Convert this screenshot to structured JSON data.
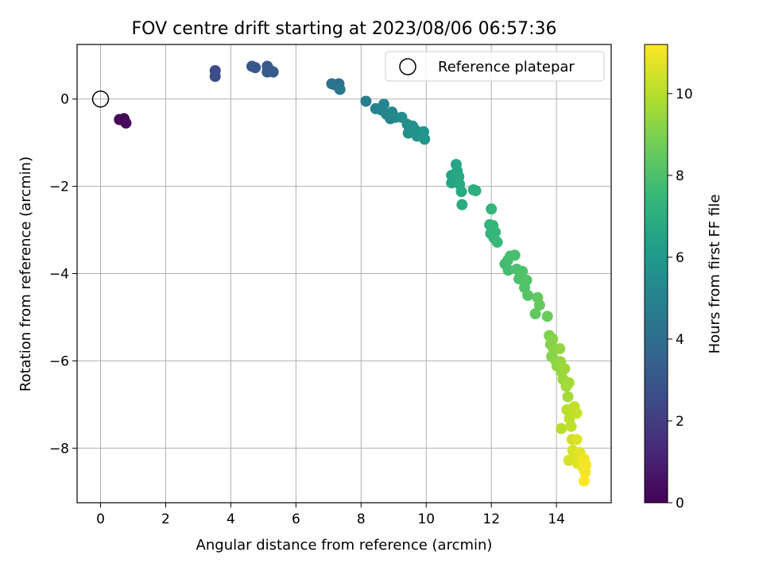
{
  "chart_data": {
    "type": "scatter",
    "title": "FOV centre drift starting at 2023/08/06 06:57:36",
    "xlabel": "Angular distance from reference (arcmin)",
    "ylabel": "Rotation from reference (arcmin)",
    "xlim": [
      -0.72,
      15.68
    ],
    "ylim": [
      -9.25,
      1.25
    ],
    "xticks": [
      0,
      2,
      4,
      6,
      8,
      10,
      12,
      14
    ],
    "yticks": [
      0,
      -2,
      -4,
      -6,
      -8
    ],
    "xtick_labels": [
      "0",
      "2",
      "4",
      "6",
      "8",
      "10",
      "12",
      "14"
    ],
    "ytick_labels": [
      "0",
      "−2",
      "−4",
      "−6",
      "−8"
    ],
    "grid": true,
    "colormap": "viridis",
    "legend": {
      "position": "top-right",
      "entries": [
        {
          "label": "Reference platepar",
          "marker": "open-circle"
        }
      ]
    },
    "reference_point": {
      "x": 0,
      "y": 0
    },
    "colorbar": {
      "label": "Hours from first FF file",
      "range": [
        0,
        11.2
      ],
      "ticks": [
        0,
        2,
        4,
        6,
        8,
        10
      ],
      "tick_labels": [
        "0",
        "2",
        "4",
        "6",
        "8",
        "10"
      ]
    },
    "points": [
      {
        "x": 0.58,
        "y": -0.47,
        "c": 0.0
      },
      {
        "x": 0.68,
        "y": -0.48,
        "c": 0.15
      },
      {
        "x": 0.72,
        "y": -0.45,
        "c": 0.25
      },
      {
        "x": 0.78,
        "y": -0.55,
        "c": 0.35
      },
      {
        "x": 3.52,
        "y": 0.65,
        "c": 2.5
      },
      {
        "x": 3.52,
        "y": 0.52,
        "c": 2.6
      },
      {
        "x": 4.65,
        "y": 0.75,
        "c": 3.0
      },
      {
        "x": 4.75,
        "y": 0.72,
        "c": 3.05
      },
      {
        "x": 5.12,
        "y": 0.75,
        "c": 3.1
      },
      {
        "x": 5.12,
        "y": 0.62,
        "c": 3.15
      },
      {
        "x": 5.22,
        "y": 0.65,
        "c": 3.2
      },
      {
        "x": 5.3,
        "y": 0.62,
        "c": 3.25
      },
      {
        "x": 7.1,
        "y": 0.35,
        "c": 4.2
      },
      {
        "x": 7.18,
        "y": 0.33,
        "c": 4.25
      },
      {
        "x": 7.32,
        "y": 0.35,
        "c": 4.3
      },
      {
        "x": 7.35,
        "y": 0.22,
        "c": 4.35
      },
      {
        "x": 8.15,
        "y": -0.05,
        "c": 4.8
      },
      {
        "x": 8.45,
        "y": -0.22,
        "c": 5.0
      },
      {
        "x": 8.62,
        "y": -0.25,
        "c": 5.05
      },
      {
        "x": 8.7,
        "y": -0.12,
        "c": 5.1
      },
      {
        "x": 8.78,
        "y": -0.35,
        "c": 5.15
      },
      {
        "x": 8.9,
        "y": -0.45,
        "c": 5.2
      },
      {
        "x": 8.95,
        "y": -0.3,
        "c": 5.25
      },
      {
        "x": 9.05,
        "y": -0.42,
        "c": 5.3
      },
      {
        "x": 9.25,
        "y": -0.42,
        "c": 5.4
      },
      {
        "x": 9.42,
        "y": -0.58,
        "c": 5.5
      },
      {
        "x": 9.45,
        "y": -0.78,
        "c": 5.55
      },
      {
        "x": 9.58,
        "y": -0.62,
        "c": 5.6
      },
      {
        "x": 9.68,
        "y": -0.72,
        "c": 5.65
      },
      {
        "x": 9.72,
        "y": -0.85,
        "c": 5.7
      },
      {
        "x": 9.85,
        "y": -0.78,
        "c": 5.75
      },
      {
        "x": 9.92,
        "y": -0.75,
        "c": 5.8
      },
      {
        "x": 9.95,
        "y": -0.92,
        "c": 5.85
      },
      {
        "x": 10.78,
        "y": -1.75,
        "c": 6.5
      },
      {
        "x": 10.78,
        "y": -1.92,
        "c": 6.55
      },
      {
        "x": 10.92,
        "y": -1.5,
        "c": 6.6
      },
      {
        "x": 10.95,
        "y": -1.65,
        "c": 6.65
      },
      {
        "x": 11.0,
        "y": -1.78,
        "c": 6.7
      },
      {
        "x": 11.02,
        "y": -1.95,
        "c": 6.75
      },
      {
        "x": 11.08,
        "y": -2.12,
        "c": 6.8
      },
      {
        "x": 11.1,
        "y": -2.42,
        "c": 6.85
      },
      {
        "x": 11.45,
        "y": -2.08,
        "c": 7.0
      },
      {
        "x": 11.52,
        "y": -2.1,
        "c": 7.05
      },
      {
        "x": 11.95,
        "y": -2.88,
        "c": 7.2
      },
      {
        "x": 11.98,
        "y": -3.08,
        "c": 7.25
      },
      {
        "x": 12.0,
        "y": -2.52,
        "c": 7.3
      },
      {
        "x": 12.05,
        "y": -2.9,
        "c": 7.35
      },
      {
        "x": 12.08,
        "y": -3.18,
        "c": 7.4
      },
      {
        "x": 12.12,
        "y": -3.05,
        "c": 7.45
      },
      {
        "x": 12.18,
        "y": -3.28,
        "c": 7.5
      },
      {
        "x": 12.42,
        "y": -3.78,
        "c": 7.7
      },
      {
        "x": 12.5,
        "y": -3.7,
        "c": 7.75
      },
      {
        "x": 12.52,
        "y": -3.92,
        "c": 7.8
      },
      {
        "x": 12.58,
        "y": -3.6,
        "c": 7.85
      },
      {
        "x": 12.72,
        "y": -3.58,
        "c": 7.9
      },
      {
        "x": 12.78,
        "y": -3.9,
        "c": 7.95
      },
      {
        "x": 12.85,
        "y": -4.12,
        "c": 8.0
      },
      {
        "x": 12.95,
        "y": -3.95,
        "c": 8.05
      },
      {
        "x": 13.02,
        "y": -4.32,
        "c": 8.1
      },
      {
        "x": 13.08,
        "y": -4.15,
        "c": 8.15
      },
      {
        "x": 13.12,
        "y": -4.5,
        "c": 8.2
      },
      {
        "x": 13.35,
        "y": -4.92,
        "c": 8.4
      },
      {
        "x": 13.42,
        "y": -4.55,
        "c": 8.45
      },
      {
        "x": 13.48,
        "y": -4.72,
        "c": 8.5
      },
      {
        "x": 13.72,
        "y": -4.98,
        "c": 8.6
      },
      {
        "x": 13.78,
        "y": -5.42,
        "c": 9.0
      },
      {
        "x": 13.82,
        "y": -5.62,
        "c": 9.05
      },
      {
        "x": 13.85,
        "y": -5.9,
        "c": 9.1
      },
      {
        "x": 13.88,
        "y": -5.5,
        "c": 9.15
      },
      {
        "x": 13.92,
        "y": -5.75,
        "c": 9.2
      },
      {
        "x": 13.98,
        "y": -6.0,
        "c": 9.25
      },
      {
        "x": 14.02,
        "y": -6.12,
        "c": 9.3
      },
      {
        "x": 14.1,
        "y": -5.72,
        "c": 9.35
      },
      {
        "x": 14.12,
        "y": -6.02,
        "c": 9.4
      },
      {
        "x": 14.15,
        "y": -6.25,
        "c": 9.45
      },
      {
        "x": 14.2,
        "y": -6.42,
        "c": 9.5
      },
      {
        "x": 14.25,
        "y": -6.18,
        "c": 9.55
      },
      {
        "x": 14.3,
        "y": -6.58,
        "c": 9.6
      },
      {
        "x": 14.35,
        "y": -6.82,
        "c": 9.65
      },
      {
        "x": 14.38,
        "y": -6.5,
        "c": 9.7
      },
      {
        "x": 14.15,
        "y": -7.55,
        "c": 10.0
      },
      {
        "x": 14.32,
        "y": -7.12,
        "c": 10.05
      },
      {
        "x": 14.4,
        "y": -7.32,
        "c": 10.1
      },
      {
        "x": 14.45,
        "y": -7.5,
        "c": 10.15
      },
      {
        "x": 14.55,
        "y": -7.05,
        "c": 10.2
      },
      {
        "x": 14.62,
        "y": -7.2,
        "c": 10.25
      },
      {
        "x": 14.48,
        "y": -7.8,
        "c": 10.4
      },
      {
        "x": 14.38,
        "y": -8.28,
        "c": 10.5
      },
      {
        "x": 14.5,
        "y": -8.05,
        "c": 10.55
      },
      {
        "x": 14.55,
        "y": -8.2,
        "c": 10.6
      },
      {
        "x": 14.62,
        "y": -7.8,
        "c": 10.65
      },
      {
        "x": 14.65,
        "y": -8.35,
        "c": 10.7
      },
      {
        "x": 14.72,
        "y": -8.1,
        "c": 10.75
      },
      {
        "x": 14.78,
        "y": -8.28,
        "c": 10.8
      },
      {
        "x": 14.82,
        "y": -8.45,
        "c": 10.9
      },
      {
        "x": 14.85,
        "y": -8.25,
        "c": 11.0
      },
      {
        "x": 14.88,
        "y": -8.55,
        "c": 11.05
      },
      {
        "x": 14.9,
        "y": -8.38,
        "c": 11.1
      },
      {
        "x": 14.85,
        "y": -8.75,
        "c": 11.2
      }
    ]
  }
}
